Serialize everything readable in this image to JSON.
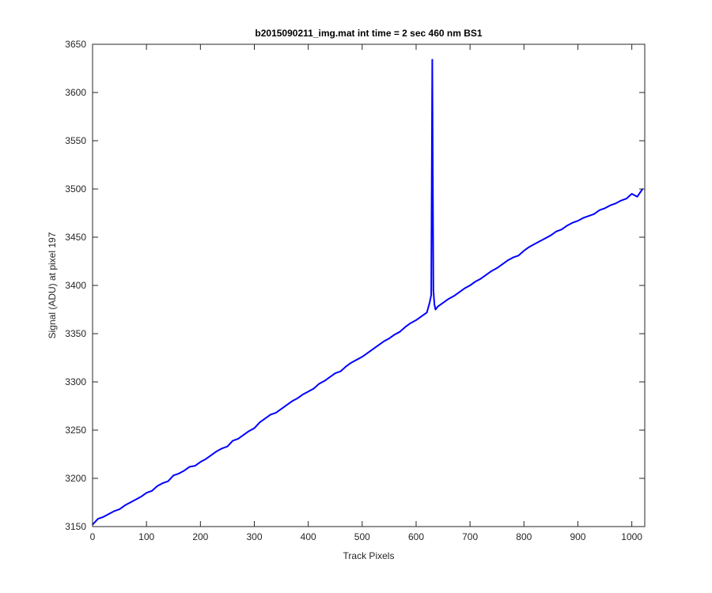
{
  "chart_data": {
    "type": "line",
    "title": "b2015090211_img.mat int time = 2 sec  460 nm BS1",
    "xlabel": "Track Pixels",
    "ylabel": "Signal (ADU) at pixel 197",
    "xlim": [
      0,
      1024
    ],
    "ylim": [
      3150,
      3650
    ],
    "xticks": [
      0,
      100,
      200,
      300,
      400,
      500,
      600,
      700,
      800,
      900,
      1000
    ],
    "yticks": [
      3150,
      3200,
      3250,
      3300,
      3350,
      3400,
      3450,
      3500,
      3550,
      3600,
      3650
    ],
    "grid": false,
    "legend": "none",
    "series": [
      {
        "color": "#0000ff",
        "x": [
          0,
          10,
          20,
          30,
          40,
          50,
          60,
          70,
          80,
          90,
          100,
          110,
          120,
          130,
          140,
          150,
          160,
          170,
          180,
          190,
          200,
          210,
          220,
          230,
          240,
          250,
          260,
          270,
          280,
          290,
          300,
          310,
          320,
          330,
          340,
          350,
          360,
          370,
          380,
          390,
          400,
          410,
          420,
          430,
          440,
          450,
          460,
          470,
          480,
          490,
          500,
          510,
          520,
          530,
          540,
          550,
          560,
          570,
          580,
          590,
          600,
          610,
          620,
          625,
          628,
          630,
          632,
          634,
          636,
          640,
          650,
          660,
          670,
          680,
          690,
          700,
          710,
          720,
          730,
          740,
          750,
          760,
          770,
          780,
          790,
          800,
          810,
          820,
          830,
          840,
          850,
          860,
          870,
          880,
          890,
          900,
          910,
          920,
          930,
          940,
          950,
          960,
          970,
          980,
          990,
          1000,
          1010,
          1020
        ],
        "values": [
          3152,
          3158,
          3160,
          3163,
          3166,
          3168,
          3172,
          3175,
          3178,
          3181,
          3185,
          3187,
          3192,
          3195,
          3197,
          3203,
          3205,
          3208,
          3212,
          3213,
          3217,
          3220,
          3224,
          3228,
          3231,
          3233,
          3239,
          3241,
          3245,
          3249,
          3252,
          3258,
          3262,
          3266,
          3268,
          3272,
          3276,
          3280,
          3283,
          3287,
          3290,
          3293,
          3298,
          3301,
          3305,
          3309,
          3311,
          3316,
          3320,
          3323,
          3326,
          3330,
          3334,
          3338,
          3342,
          3345,
          3349,
          3352,
          3357,
          3361,
          3364,
          3368,
          3372,
          3382,
          3390,
          3634,
          3395,
          3380,
          3375,
          3378,
          3382,
          3386,
          3389,
          3393,
          3397,
          3400,
          3404,
          3407,
          3411,
          3415,
          3418,
          3422,
          3426,
          3429,
          3431,
          3436,
          3440,
          3443,
          3446,
          3449,
          3452,
          3456,
          3458,
          3462,
          3465,
          3467,
          3470,
          3472,
          3474,
          3478,
          3480,
          3483,
          3485,
          3488,
          3490,
          3495,
          3492,
          3500
        ]
      }
    ]
  }
}
